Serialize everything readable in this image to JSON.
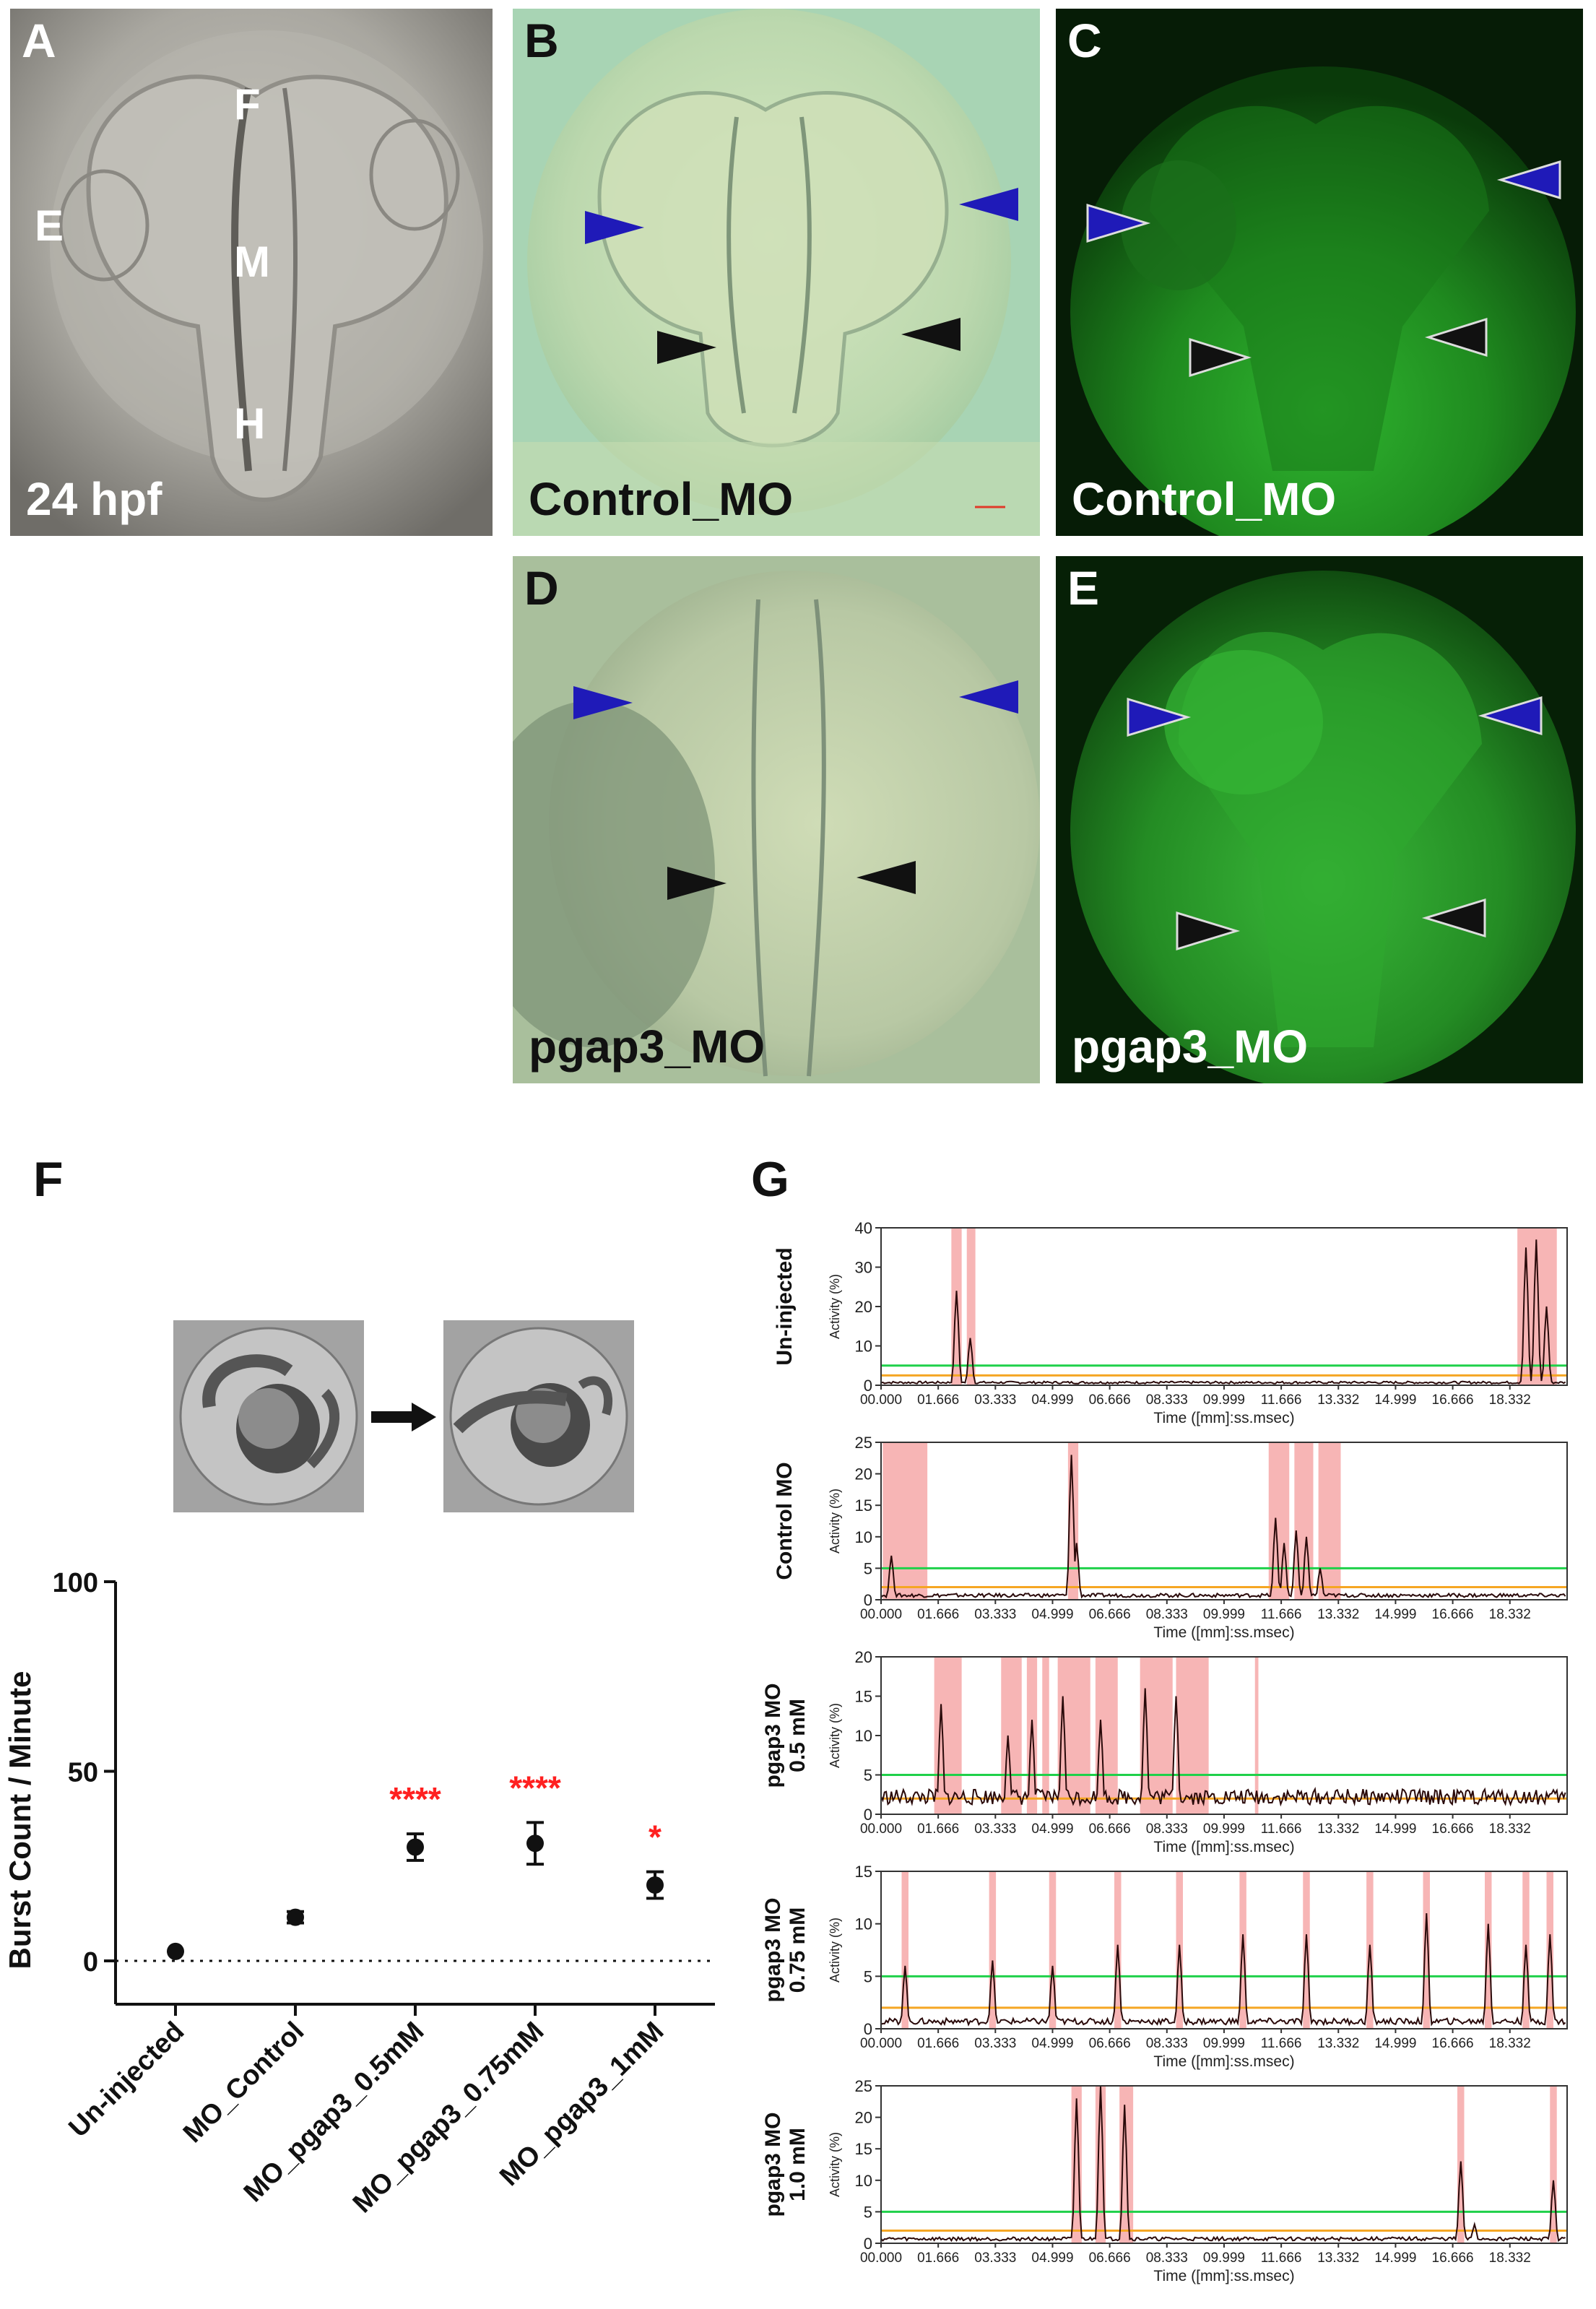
{
  "panels": {
    "A": {
      "letter": "A",
      "caption": "24 hpf",
      "labels": {
        "E": "E",
        "F": "F",
        "M": "M",
        "H": "H"
      }
    },
    "B": {
      "letter": "B",
      "caption": "Control_MO"
    },
    "C": {
      "letter": "C",
      "caption": "Control_MO"
    },
    "D": {
      "letter": "D",
      "caption": "pgap3_MO"
    },
    "E": {
      "letter": "E",
      "caption": "pgap3_MO"
    }
  },
  "panel_F": {
    "letter": "F"
  },
  "panel_G": {
    "letter": "G"
  },
  "colors": {
    "arrow_blue": "#1f1ab8",
    "arrow_black": "#111111",
    "sig_red": "#ff2020",
    "peak_fill": "#f7b5b5",
    "threshold_green": "#1fd14a",
    "threshold_orange": "#f5a623",
    "fluorescence": "#1faa1f"
  },
  "chart_data": [
    {
      "type": "scatter",
      "panel": "F",
      "ylabel": "Burst Count / Minute",
      "ylim": [
        0,
        100
      ],
      "yticks": [
        0,
        50,
        100
      ],
      "categories": [
        "Un-injected",
        "MO_Control",
        "MO_pgap3_0.5mM",
        "MO_pgap3_0.75mM",
        "MO_pgap3_1mM"
      ],
      "means": [
        2.5,
        11.5,
        30,
        31,
        20
      ],
      "errors": [
        0.8,
        1.5,
        3.5,
        5.5,
        3.5
      ],
      "significance": [
        "",
        "",
        "****",
        "****",
        "*"
      ],
      "reference_line": 0
    },
    {
      "type": "line",
      "panel": "G",
      "xlabel": "Time ([mm]:ss.msec)",
      "ylabel": "Activity (%)",
      "xticks": [
        "00.000",
        "01.666",
        "03.333",
        "04.999",
        "06.666",
        "08.333",
        "09.999",
        "11.666",
        "13.332",
        "14.999",
        "16.666",
        "18.332"
      ],
      "series": [
        {
          "name": "Un-injected",
          "ymax": 40,
          "yticks": [
            0,
            10,
            20,
            30,
            40
          ],
          "green": 5,
          "orange": 2.5,
          "peaks": [
            [
              2.2,
              24
            ],
            [
              2.6,
              12
            ],
            [
              18.8,
              35
            ],
            [
              19.1,
              37
            ],
            [
              19.4,
              20
            ]
          ],
          "highlights": [
            [
              2.05,
              2.35
            ],
            [
              2.5,
              2.75
            ],
            [
              18.55,
              19.7
            ]
          ]
        },
        {
          "name": "Control MO",
          "ymax": 25,
          "yticks": [
            0,
            5,
            10,
            15,
            20,
            25
          ],
          "green": 5,
          "orange": 2,
          "peaks": [
            [
              0.3,
              7
            ],
            [
              5.55,
              23
            ],
            [
              5.7,
              9
            ],
            [
              11.5,
              13
            ],
            [
              11.75,
              9
            ],
            [
              12.1,
              11
            ],
            [
              12.4,
              10
            ],
            [
              12.8,
              5
            ]
          ],
          "highlights": [
            [
              0.05,
              1.35
            ],
            [
              5.45,
              5.75
            ],
            [
              11.3,
              11.9
            ],
            [
              12.05,
              12.6
            ],
            [
              12.75,
              13.4
            ]
          ]
        },
        {
          "name": "pgap3 MO\n0.5 mM",
          "ymax": 20,
          "yticks": [
            0,
            5,
            10,
            15,
            20
          ],
          "green": 5,
          "orange": 2,
          "peaks": [
            [
              1.75,
              14
            ],
            [
              3.7,
              10
            ],
            [
              4.4,
              12
            ],
            [
              5.3,
              15
            ],
            [
              6.4,
              12
            ],
            [
              7.7,
              16
            ],
            [
              8.6,
              15
            ]
          ],
          "highlights": [
            [
              1.55,
              2.35
            ],
            [
              3.5,
              4.1
            ],
            [
              4.25,
              4.55
            ],
            [
              4.7,
              4.9
            ],
            [
              5.15,
              6.1
            ],
            [
              6.25,
              6.9
            ],
            [
              7.55,
              8.5
            ],
            [
              8.6,
              9.55
            ],
            [
              10.9,
              11.0
            ]
          ]
        },
        {
          "name": "pgap3 MO\n0.75 mM",
          "ymax": 15,
          "yticks": [
            0,
            5,
            10,
            15
          ],
          "green": 5,
          "orange": 2,
          "peaks": [
            [
              0.7,
              6
            ],
            [
              3.25,
              6.5
            ],
            [
              5.0,
              6
            ],
            [
              6.9,
              8
            ],
            [
              8.7,
              8
            ],
            [
              10.55,
              9
            ],
            [
              12.4,
              9
            ],
            [
              14.25,
              8
            ],
            [
              15.9,
              11
            ],
            [
              17.7,
              10
            ],
            [
              18.8,
              8
            ],
            [
              19.5,
              9
            ]
          ],
          "highlights": [
            [
              0.6,
              0.8
            ],
            [
              3.15,
              3.35
            ],
            [
              4.9,
              5.1
            ],
            [
              6.8,
              7.0
            ],
            [
              8.6,
              8.8
            ],
            [
              10.45,
              10.65
            ],
            [
              12.3,
              12.5
            ],
            [
              14.15,
              14.35
            ],
            [
              15.8,
              16.0
            ],
            [
              17.6,
              17.8
            ],
            [
              18.7,
              18.9
            ],
            [
              19.4,
              19.6
            ]
          ]
        },
        {
          "name": "pgap3 MO\n1.0 mM",
          "ymax": 25,
          "yticks": [
            0,
            5,
            10,
            15,
            20,
            25
          ],
          "green": 5,
          "orange": 2,
          "peaks": [
            [
              5.7,
              23
            ],
            [
              6.4,
              25
            ],
            [
              7.1,
              22
            ],
            [
              16.9,
              13
            ],
            [
              17.3,
              3
            ],
            [
              19.6,
              10
            ]
          ],
          "highlights": [
            [
              5.55,
              5.85
            ],
            [
              6.25,
              6.55
            ],
            [
              6.95,
              7.35
            ],
            [
              16.8,
              17.0
            ],
            [
              19.5,
              19.7
            ]
          ]
        }
      ]
    }
  ]
}
